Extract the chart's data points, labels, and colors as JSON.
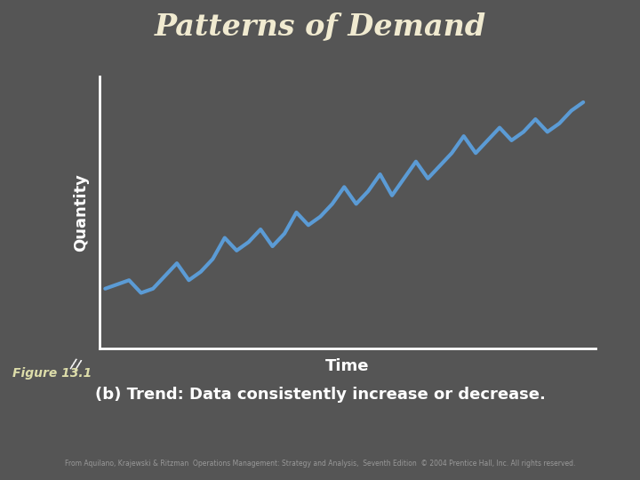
{
  "title": "Patterns of Demand",
  "xlabel": "Time",
  "ylabel": "Quantity",
  "figure_label": "Figure 13.1",
  "caption": "(b) Trend: Data consistently increase or decrease.",
  "copyright": "From Aquilano, Krajewski & Ritzman  Operations Management: Strategy and Analysis,  Seventh Edition  © 2004 Prentice Hall, Inc. All rights reserved.",
  "bg_color": "#555555",
  "line_color": "#5b9bd5",
  "line_width": 3.0,
  "title_color": "#f0ead0",
  "axis_color": "#ffffff",
  "label_color": "#ffffff",
  "caption_color": "#ffffff",
  "figure_label_color": "#ddddaa",
  "copyright_color": "#999999",
  "x_data": [
    0,
    1,
    2,
    3,
    4,
    5,
    6,
    7,
    8,
    9,
    10,
    11,
    12,
    13,
    14,
    15,
    16,
    17,
    18,
    19,
    20,
    21,
    22,
    23,
    24,
    25,
    26,
    27,
    28,
    29,
    30,
    31,
    32,
    33,
    34,
    35,
    36,
    37,
    38,
    39,
    40
  ],
  "y_data": [
    1.0,
    1.05,
    1.1,
    0.95,
    1.0,
    1.15,
    1.3,
    1.1,
    1.2,
    1.35,
    1.6,
    1.45,
    1.55,
    1.7,
    1.5,
    1.65,
    1.9,
    1.75,
    1.85,
    2.0,
    2.2,
    2.0,
    2.15,
    2.35,
    2.1,
    2.3,
    2.5,
    2.3,
    2.45,
    2.6,
    2.8,
    2.6,
    2.75,
    2.9,
    2.75,
    2.85,
    3.0,
    2.85,
    2.95,
    3.1,
    3.2
  ]
}
